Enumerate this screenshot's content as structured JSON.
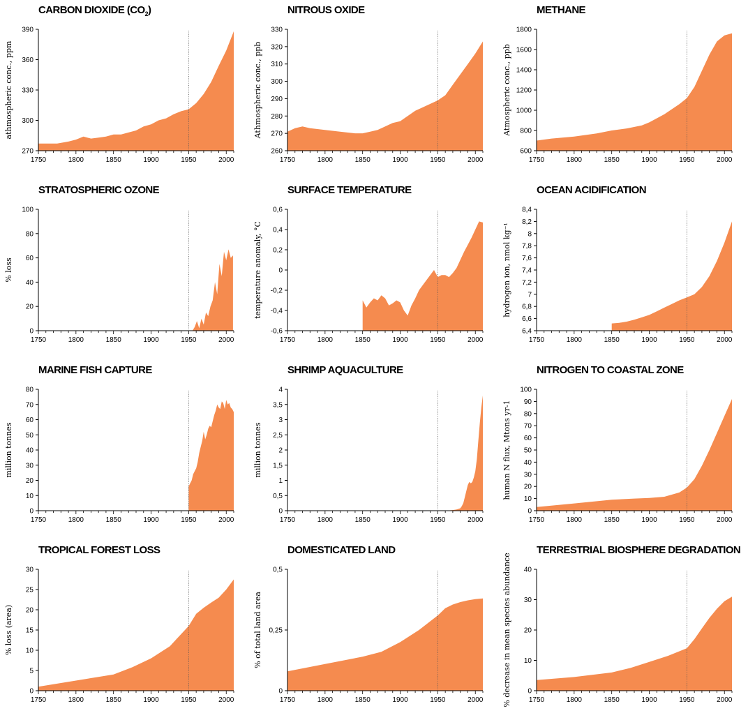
{
  "figure": {
    "x_ticks": [
      "1750",
      "1800",
      "1850",
      "1900",
      "1950",
      "2000"
    ],
    "x_range": [
      1750,
      2010
    ],
    "fill_color": "#f58b4f",
    "marker_year": 1950
  },
  "chart_data": [
    {
      "type": "area",
      "title": "CARBON DIOXIDE (CO",
      "title_sub": "2",
      "title_close": ")",
      "ylabel": "athmospheric conc., ppm",
      "ylim": [
        270,
        390
      ],
      "y_ticks": [
        "270",
        "300",
        "330",
        "360",
        "390"
      ],
      "y_tick_values": [
        270,
        300,
        330,
        360,
        390
      ],
      "x": [
        1750,
        1760,
        1775,
        1790,
        1800,
        1810,
        1820,
        1830,
        1840,
        1850,
        1860,
        1870,
        1880,
        1890,
        1900,
        1910,
        1920,
        1930,
        1940,
        1950,
        1960,
        1970,
        1980,
        1990,
        2000,
        2010
      ],
      "y": [
        277,
        277,
        277,
        279,
        281,
        284,
        282,
        283,
        284,
        286,
        286,
        288,
        290,
        294,
        296,
        300,
        302,
        306,
        309,
        311,
        317,
        326,
        338,
        354,
        369,
        388
      ]
    },
    {
      "type": "area",
      "title": "NITROUS OXIDE",
      "ylabel": "Athmospheric conc., ppb",
      "ylim": [
        260,
        330
      ],
      "y_ticks": [
        "260",
        "270",
        "280",
        "290",
        "300",
        "310",
        "320",
        "330"
      ],
      "y_tick_values": [
        260,
        270,
        280,
        290,
        300,
        310,
        320,
        330
      ],
      "x": [
        1750,
        1760,
        1770,
        1780,
        1800,
        1820,
        1840,
        1850,
        1860,
        1870,
        1880,
        1890,
        1900,
        1910,
        1920,
        1930,
        1940,
        1950,
        1960,
        1970,
        1980,
        1990,
        2000,
        2010
      ],
      "y": [
        271,
        273,
        274,
        273,
        272,
        271,
        270,
        270,
        271,
        272,
        274,
        276,
        277,
        280,
        283,
        285,
        287,
        289,
        292,
        298,
        304,
        310,
        316,
        323
      ]
    },
    {
      "type": "area",
      "title": "METHANE",
      "ylabel": "Atmospheric conc., ppb",
      "ylim": [
        600,
        1800
      ],
      "y_ticks": [
        "600",
        "800",
        "1000",
        "1200",
        "1400",
        "1600",
        "1800"
      ],
      "y_tick_values": [
        600,
        800,
        1000,
        1200,
        1400,
        1600,
        1800
      ],
      "x": [
        1750,
        1770,
        1800,
        1830,
        1850,
        1870,
        1890,
        1900,
        1920,
        1940,
        1950,
        1960,
        1970,
        1980,
        1990,
        2000,
        2010
      ],
      "y": [
        700,
        720,
        740,
        770,
        800,
        820,
        850,
        880,
        960,
        1060,
        1120,
        1230,
        1390,
        1550,
        1680,
        1740,
        1760
      ]
    },
    {
      "type": "area",
      "title": "STRATOSPHERIC OZONE",
      "ylabel": "% loss",
      "ylim": [
        0,
        100
      ],
      "y_ticks": [
        "0",
        "20",
        "40",
        "60",
        "80",
        "100"
      ],
      "y_tick_values": [
        0,
        20,
        40,
        60,
        80,
        100
      ],
      "x": [
        1955,
        1958,
        1961,
        1964,
        1967,
        1970,
        1973,
        1976,
        1979,
        1982,
        1985,
        1988,
        1991,
        1994,
        1997,
        2000,
        2003,
        2006,
        2009
      ],
      "y": [
        0,
        3,
        8,
        2,
        10,
        5,
        15,
        12,
        20,
        25,
        40,
        30,
        55,
        45,
        65,
        58,
        67,
        60,
        62
      ]
    },
    {
      "type": "area",
      "title": "SURFACE TEMPERATURE",
      "ylabel": "temperature anomaly, °C",
      "ylim": [
        -0.6,
        0.6
      ],
      "y_ticks": [
        "-0,6",
        "-0,4",
        "-0,2",
        "0",
        "0,2",
        "0,4",
        "0,6"
      ],
      "y_tick_values": [
        -0.6,
        -0.4,
        -0.2,
        0,
        0.2,
        0.4,
        0.6
      ],
      "x": [
        1850,
        1855,
        1860,
        1865,
        1870,
        1875,
        1880,
        1885,
        1890,
        1895,
        1900,
        1905,
        1910,
        1915,
        1920,
        1925,
        1930,
        1935,
        1940,
        1945,
        1950,
        1955,
        1960,
        1965,
        1970,
        1975,
        1980,
        1985,
        1990,
        1995,
        2000,
        2005,
        2010
      ],
      "y": [
        -0.3,
        -0.37,
        -0.32,
        -0.28,
        -0.3,
        -0.25,
        -0.28,
        -0.35,
        -0.33,
        -0.3,
        -0.32,
        -0.4,
        -0.45,
        -0.35,
        -0.28,
        -0.2,
        -0.15,
        -0.1,
        -0.05,
        0.0,
        -0.07,
        -0.05,
        -0.05,
        -0.07,
        -0.03,
        0.02,
        0.1,
        0.18,
        0.25,
        0.32,
        0.4,
        0.48,
        0.47
      ]
    },
    {
      "type": "area",
      "title": "OCEAN ACIDIFICATION",
      "ylabel": "hydrogen ion, nmol kg⁻¹",
      "ylim": [
        6.4,
        8.4
      ],
      "y_ticks": [
        "6,4",
        "6,6",
        "6,8",
        "7",
        "7,2",
        "7,4",
        "7,6",
        "7,8",
        "8",
        "8,2",
        "8,4"
      ],
      "y_tick_values": [
        6.4,
        6.6,
        6.8,
        7.0,
        7.2,
        7.4,
        7.6,
        7.8,
        8.0,
        8.2,
        8.4
      ],
      "x": [
        1850,
        1860,
        1870,
        1880,
        1890,
        1900,
        1910,
        1920,
        1930,
        1940,
        1950,
        1960,
        1970,
        1980,
        1990,
        2000,
        2010
      ],
      "y": [
        6.52,
        6.53,
        6.55,
        6.58,
        6.62,
        6.66,
        6.72,
        6.78,
        6.84,
        6.9,
        6.95,
        7.0,
        7.12,
        7.3,
        7.55,
        7.85,
        8.2
      ]
    },
    {
      "type": "area",
      "title": "MARINE FISH CAPTURE",
      "ylabel": "million tonnes",
      "ylim": [
        0,
        80
      ],
      "y_ticks": [
        "0",
        "10",
        "20",
        "30",
        "40",
        "50",
        "60",
        "70",
        "80"
      ],
      "y_tick_values": [
        0,
        10,
        20,
        30,
        40,
        50,
        60,
        70,
        80
      ],
      "x": [
        1950,
        1952,
        1954,
        1956,
        1958,
        1960,
        1962,
        1964,
        1966,
        1968,
        1970,
        1972,
        1974,
        1976,
        1978,
        1980,
        1982,
        1984,
        1986,
        1988,
        1990,
        1992,
        1994,
        1996,
        1998,
        2000,
        2002,
        2004,
        2006,
        2008,
        2010
      ],
      "y": [
        16,
        18,
        20,
        24,
        26,
        28,
        32,
        38,
        42,
        46,
        52,
        47,
        50,
        54,
        56,
        55,
        59,
        63,
        66,
        70,
        68,
        67,
        72,
        71,
        67,
        73,
        70,
        71,
        68,
        67,
        65
      ]
    },
    {
      "type": "area",
      "title": "SHRIMP AQUACULTURE",
      "ylabel": "million tonnes",
      "ylim": [
        0,
        4
      ],
      "y_ticks": [
        "0",
        "0,5",
        "1",
        "1,5",
        "2",
        "2,5",
        "3",
        "3,5",
        "4"
      ],
      "y_tick_values": [
        0,
        0.5,
        1,
        1.5,
        2,
        2.5,
        3,
        3.5,
        4
      ],
      "x": [
        1950,
        1960,
        1970,
        1975,
        1980,
        1982,
        1984,
        1986,
        1988,
        1990,
        1992,
        1994,
        1996,
        1998,
        2000,
        2002,
        2004,
        2006,
        2008,
        2010
      ],
      "y": [
        0,
        0,
        0.02,
        0.04,
        0.08,
        0.15,
        0.25,
        0.45,
        0.65,
        0.85,
        0.95,
        0.9,
        0.95,
        1.1,
        1.3,
        1.7,
        2.3,
        2.9,
        3.4,
        3.8
      ]
    },
    {
      "type": "area",
      "title": "NITROGEN TO COASTAL ZONE",
      "ylabel": "human N flux, Mtons yr-1",
      "ylim": [
        0,
        100
      ],
      "y_ticks": [
        "0",
        "10",
        "20",
        "30",
        "40",
        "50",
        "60",
        "70",
        "80",
        "90",
        "100"
      ],
      "y_tick_values": [
        0,
        10,
        20,
        30,
        40,
        50,
        60,
        70,
        80,
        90,
        100
      ],
      "x": [
        1750,
        1800,
        1850,
        1880,
        1900,
        1920,
        1940,
        1950,
        1960,
        1970,
        1980,
        1990,
        2000,
        2010
      ],
      "y": [
        3,
        6,
        9,
        10,
        10.5,
        11.5,
        15,
        19,
        26,
        37,
        50,
        64,
        78,
        92
      ]
    },
    {
      "type": "area",
      "title": "TROPICAL FOREST LOSS",
      "ylabel": "% loss (area)",
      "ylim": [
        0,
        30
      ],
      "y_ticks": [
        "0",
        "5",
        "10",
        "15",
        "20",
        "25",
        "30"
      ],
      "y_tick_values": [
        0,
        5,
        10,
        15,
        20,
        25,
        30
      ],
      "x": [
        1750,
        1800,
        1850,
        1875,
        1900,
        1925,
        1950,
        1960,
        1970,
        1980,
        1990,
        2000,
        2010
      ],
      "y": [
        1,
        2.5,
        4,
        5.8,
        8,
        11,
        16,
        19,
        20.5,
        21.8,
        23,
        25,
        27.5
      ]
    },
    {
      "type": "area",
      "title": "DOMESTICATED LAND",
      "ylabel": "% of total land area",
      "ylim": [
        0,
        0.5
      ],
      "y_ticks": [
        "0",
        "0,25",
        "0,5"
      ],
      "y_tick_values": [
        0,
        0.25,
        0.5
      ],
      "x": [
        1750,
        1800,
        1850,
        1875,
        1900,
        1925,
        1950,
        1960,
        1970,
        1980,
        1990,
        2000,
        2010
      ],
      "y": [
        0.08,
        0.11,
        0.14,
        0.16,
        0.2,
        0.25,
        0.31,
        0.34,
        0.355,
        0.365,
        0.372,
        0.377,
        0.38
      ]
    },
    {
      "type": "area",
      "title": "TERRESTRIAL BIOSPHERE DEGRADATION",
      "ylabel": "% decrease in mean species abundance",
      "ylim": [
        0,
        40
      ],
      "y_ticks": [
        "0",
        "10",
        "20",
        "30",
        "40"
      ],
      "y_tick_values": [
        0,
        10,
        20,
        30,
        40
      ],
      "x": [
        1750,
        1800,
        1850,
        1875,
        1900,
        1925,
        1950,
        1960,
        1970,
        1980,
        1990,
        2000,
        2010
      ],
      "y": [
        3.5,
        4.5,
        6,
        7.5,
        9.5,
        11.5,
        14,
        17,
        20.5,
        24,
        27,
        29.5,
        31
      ]
    }
  ]
}
